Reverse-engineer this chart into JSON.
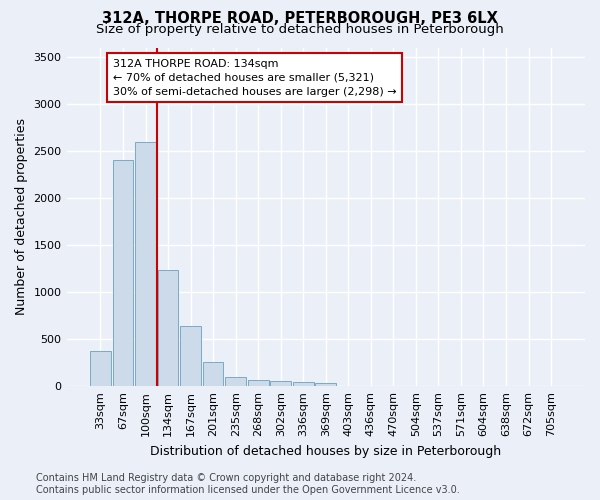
{
  "title": "312A, THORPE ROAD, PETERBOROUGH, PE3 6LX",
  "subtitle": "Size of property relative to detached houses in Peterborough",
  "xlabel": "Distribution of detached houses by size in Peterborough",
  "ylabel": "Number of detached properties",
  "footer_line1": "Contains HM Land Registry data © Crown copyright and database right 2024.",
  "footer_line2": "Contains public sector information licensed under the Open Government Licence v3.0.",
  "categories": [
    "33sqm",
    "67sqm",
    "100sqm",
    "134sqm",
    "167sqm",
    "201sqm",
    "235sqm",
    "268sqm",
    "302sqm",
    "336sqm",
    "369sqm",
    "403sqm",
    "436sqm",
    "470sqm",
    "504sqm",
    "537sqm",
    "571sqm",
    "604sqm",
    "638sqm",
    "672sqm",
    "705sqm"
  ],
  "values": [
    380,
    2400,
    2600,
    1240,
    640,
    260,
    95,
    65,
    60,
    50,
    30,
    0,
    0,
    0,
    0,
    0,
    0,
    0,
    0,
    0,
    0
  ],
  "bar_color": "#ccdaea",
  "bar_edge_color": "#7aaac8",
  "ref_line_color": "#cc0000",
  "annotation_text": "312A THORPE ROAD: 134sqm\n← 70% of detached houses are smaller (5,321)\n30% of semi-detached houses are larger (2,298) →",
  "annotation_box_facecolor": "#ffffff",
  "annotation_box_edgecolor": "#cc0000",
  "ylim": [
    0,
    3600
  ],
  "yticks": [
    0,
    500,
    1000,
    1500,
    2000,
    2500,
    3000,
    3500
  ],
  "bg_color": "#eaeff8",
  "plot_bg_color": "#eaeff8",
  "grid_color": "#ffffff",
  "title_fontsize": 10.5,
  "subtitle_fontsize": 9.5,
  "axis_label_fontsize": 9,
  "tick_fontsize": 8,
  "annotation_fontsize": 8,
  "footer_fontsize": 7
}
